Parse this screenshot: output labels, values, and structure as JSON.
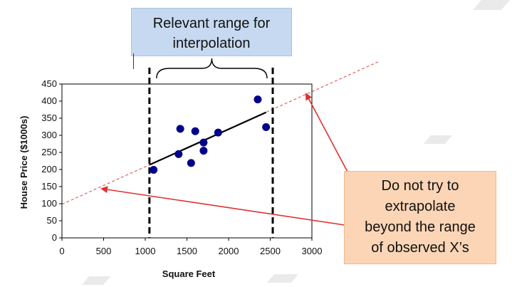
{
  "chart_data": {
    "type": "scatter",
    "xlabel": "Square Feet",
    "ylabel": "House Price ($1000s)",
    "xlim": [
      0,
      3000
    ],
    "ylim": [
      0,
      450
    ],
    "xticks": [
      0,
      500,
      1000,
      1500,
      2000,
      2500,
      3000
    ],
    "yticks": [
      0,
      50,
      100,
      150,
      200,
      250,
      300,
      350,
      400,
      450
    ],
    "points": [
      {
        "x": 1100,
        "y": 199
      },
      {
        "x": 1400,
        "y": 245
      },
      {
        "x": 1420,
        "y": 319
      },
      {
        "x": 1550,
        "y": 219
      },
      {
        "x": 1600,
        "y": 312
      },
      {
        "x": 1700,
        "y": 279
      },
      {
        "x": 1700,
        "y": 255
      },
      {
        "x": 1875,
        "y": 308
      },
      {
        "x": 2350,
        "y": 405
      },
      {
        "x": 2450,
        "y": 324
      }
    ],
    "regression": {
      "intercept": 98.25,
      "slope": 0.1098
    },
    "fit_range": [
      1050,
      2450
    ],
    "observed_range": [
      1050,
      2530
    ],
    "point_color": "#00008b",
    "line_color": "#000000",
    "extrapolation_color": "#e06666",
    "arrow_color": "#e03030"
  },
  "annotations": {
    "interpolation_lines": [
      "Relevant range for",
      "interpolation"
    ],
    "extrapolation_lines": [
      "Do not try to",
      "extrapolate",
      "beyond the range",
      "of observed X’s"
    ],
    "interpolation_bg": "#c6d9f0",
    "extrapolation_bg": "#fbd5b5"
  }
}
